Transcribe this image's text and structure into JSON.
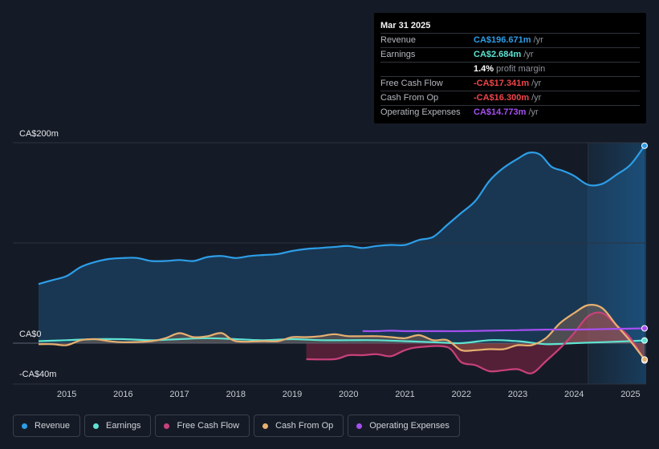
{
  "tooltip": {
    "date": "Mar 31 2025",
    "rows": [
      {
        "label": "Revenue",
        "value": "CA$196.671m",
        "unit": "/yr",
        "color": "#2d9ee8"
      },
      {
        "label": "Earnings",
        "value": "CA$2.684m",
        "unit": "/yr",
        "color": "#5fe3d2"
      },
      {
        "label": "",
        "value": "1.4%",
        "unit": "profit margin",
        "color": "#ffffff"
      },
      {
        "label": "Free Cash Flow",
        "value": "-CA$17.341m",
        "unit": "/yr",
        "color": "#f0454a"
      },
      {
        "label": "Cash From Op",
        "value": "-CA$16.300m",
        "unit": "/yr",
        "color": "#f0454a"
      },
      {
        "label": "Operating Expenses",
        "value": "CA$14.773m",
        "unit": "/yr",
        "color": "#a54ff0"
      }
    ]
  },
  "chart_data": {
    "type": "line",
    "ylabel_top": "CA$200m",
    "ylabel_zero": "CA$0",
    "ylabel_bottom": "-CA$40m",
    "ylim": [
      -40,
      200
    ],
    "xlim": [
      2014.5,
      2025.25
    ],
    "x_ticks": [
      "2015",
      "2016",
      "2017",
      "2018",
      "2019",
      "2020",
      "2021",
      "2022",
      "2023",
      "2024",
      "2025"
    ],
    "forecast_start": 2024.25,
    "series": [
      {
        "name": "Revenue",
        "color": "#2d9ee8",
        "fill": true,
        "points": [
          [
            2014.5,
            59
          ],
          [
            2014.75,
            63
          ],
          [
            2015.0,
            67
          ],
          [
            2015.25,
            76
          ],
          [
            2015.5,
            81
          ],
          [
            2015.75,
            84
          ],
          [
            2016.0,
            85
          ],
          [
            2016.25,
            85
          ],
          [
            2016.5,
            82
          ],
          [
            2016.75,
            82
          ],
          [
            2017.0,
            83
          ],
          [
            2017.25,
            82
          ],
          [
            2017.5,
            86
          ],
          [
            2017.75,
            87
          ],
          [
            2018.0,
            85
          ],
          [
            2018.25,
            87
          ],
          [
            2018.5,
            88
          ],
          [
            2018.75,
            89
          ],
          [
            2019.0,
            92
          ],
          [
            2019.25,
            94
          ],
          [
            2019.5,
            95
          ],
          [
            2019.75,
            96
          ],
          [
            2020.0,
            97
          ],
          [
            2020.25,
            95
          ],
          [
            2020.5,
            97
          ],
          [
            2020.75,
            98
          ],
          [
            2021.0,
            98
          ],
          [
            2021.25,
            103
          ],
          [
            2021.5,
            106
          ],
          [
            2021.75,
            118
          ],
          [
            2022.0,
            130
          ],
          [
            2022.25,
            142
          ],
          [
            2022.5,
            162
          ],
          [
            2022.75,
            175
          ],
          [
            2023.0,
            184
          ],
          [
            2023.2,
            190
          ],
          [
            2023.4,
            188
          ],
          [
            2023.6,
            176
          ],
          [
            2023.8,
            172
          ],
          [
            2024.0,
            167
          ],
          [
            2024.25,
            158
          ],
          [
            2024.5,
            159
          ],
          [
            2024.75,
            168
          ],
          [
            2025.0,
            178
          ],
          [
            2025.25,
            197
          ]
        ]
      },
      {
        "name": "Earnings",
        "color": "#5fe3d2",
        "fill": false,
        "points": [
          [
            2014.5,
            2
          ],
          [
            2015.0,
            3
          ],
          [
            2015.5,
            4
          ],
          [
            2016.0,
            4
          ],
          [
            2016.5,
            3
          ],
          [
            2017.0,
            4
          ],
          [
            2017.5,
            5
          ],
          [
            2018.0,
            4
          ],
          [
            2018.5,
            3
          ],
          [
            2019.0,
            4
          ],
          [
            2019.5,
            3
          ],
          [
            2020.0,
            3
          ],
          [
            2020.5,
            3
          ],
          [
            2021.0,
            2
          ],
          [
            2021.5,
            1
          ],
          [
            2022.0,
            0
          ],
          [
            2022.5,
            3
          ],
          [
            2023.0,
            2
          ],
          [
            2023.5,
            -1
          ],
          [
            2024.0,
            0
          ],
          [
            2024.5,
            1
          ],
          [
            2025.0,
            2
          ],
          [
            2025.25,
            2.7
          ]
        ]
      },
      {
        "name": "Free Cash Flow",
        "color": "#c9417a",
        "fill": true,
        "points": [
          [
            2019.25,
            -16
          ],
          [
            2019.75,
            -16
          ],
          [
            2020.0,
            -12
          ],
          [
            2020.25,
            -12
          ],
          [
            2020.5,
            -11
          ],
          [
            2020.75,
            -13
          ],
          [
            2021.0,
            -7
          ],
          [
            2021.25,
            -4
          ],
          [
            2021.75,
            -4
          ],
          [
            2022.0,
            -19
          ],
          [
            2022.25,
            -22
          ],
          [
            2022.5,
            -28
          ],
          [
            2022.75,
            -27
          ],
          [
            2023.0,
            -26
          ],
          [
            2023.25,
            -30
          ],
          [
            2023.5,
            -18
          ],
          [
            2023.75,
            -5
          ],
          [
            2024.0,
            10
          ],
          [
            2024.25,
            27
          ],
          [
            2024.5,
            30
          ],
          [
            2024.75,
            18
          ],
          [
            2025.0,
            5
          ],
          [
            2025.25,
            -17.3
          ]
        ]
      },
      {
        "name": "Cash From Op",
        "color": "#e8b070",
        "fill": true,
        "points": [
          [
            2014.5,
            -1
          ],
          [
            2014.75,
            -1
          ],
          [
            2015.0,
            -2
          ],
          [
            2015.25,
            3
          ],
          [
            2015.5,
            4
          ],
          [
            2015.75,
            2
          ],
          [
            2016.0,
            1
          ],
          [
            2016.5,
            2
          ],
          [
            2016.75,
            5
          ],
          [
            2017.0,
            10
          ],
          [
            2017.25,
            6
          ],
          [
            2017.5,
            7
          ],
          [
            2017.75,
            10
          ],
          [
            2018.0,
            2
          ],
          [
            2018.5,
            2
          ],
          [
            2018.75,
            2
          ],
          [
            2019.0,
            6
          ],
          [
            2019.25,
            6
          ],
          [
            2019.5,
            7
          ],
          [
            2019.75,
            9
          ],
          [
            2020.0,
            7
          ],
          [
            2020.5,
            7
          ],
          [
            2020.75,
            6
          ],
          [
            2021.0,
            5
          ],
          [
            2021.25,
            8
          ],
          [
            2021.5,
            3
          ],
          [
            2021.75,
            3
          ],
          [
            2022.0,
            -7
          ],
          [
            2022.25,
            -7
          ],
          [
            2022.5,
            -6
          ],
          [
            2022.75,
            -6
          ],
          [
            2023.0,
            -2
          ],
          [
            2023.25,
            -2
          ],
          [
            2023.5,
            5
          ],
          [
            2023.75,
            20
          ],
          [
            2024.0,
            30
          ],
          [
            2024.25,
            38
          ],
          [
            2024.5,
            35
          ],
          [
            2024.75,
            18
          ],
          [
            2025.0,
            2
          ],
          [
            2025.25,
            -16.3
          ]
        ]
      },
      {
        "name": "Operating Expenses",
        "color": "#a54ff0",
        "fill": false,
        "points": [
          [
            2020.25,
            12
          ],
          [
            2020.5,
            12
          ],
          [
            2020.75,
            12.5
          ],
          [
            2021.0,
            12
          ],
          [
            2021.5,
            12
          ],
          [
            2022.0,
            12
          ],
          [
            2022.5,
            12.5
          ],
          [
            2023.0,
            13
          ],
          [
            2023.5,
            13.5
          ],
          [
            2024.0,
            13.5
          ],
          [
            2024.5,
            14
          ],
          [
            2025.0,
            14.5
          ],
          [
            2025.25,
            14.8
          ]
        ]
      }
    ]
  },
  "legend": [
    "Revenue",
    "Earnings",
    "Free Cash Flow",
    "Cash From Op",
    "Operating Expenses"
  ]
}
